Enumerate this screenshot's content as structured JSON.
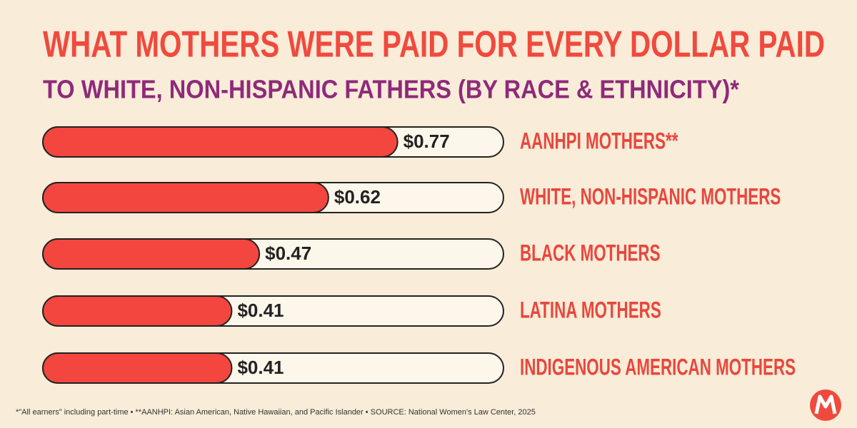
{
  "chart_data": {
    "type": "bar",
    "title": "WHAT MOTHERS WERE PAID FOR EVERY DOLLAR PAID",
    "subtitle": "TO WHITE, NON-HISPANIC FATHERS (BY RACE & ETHNICITY)*",
    "categories": [
      "AANHPI MOTHERS**",
      "WHITE, NON-HISPANIC MOTHERS",
      "BLACK MOTHERS",
      "LATINA MOTHERS",
      "INDIGENOUS AMERICAN MOTHERS"
    ],
    "values": [
      0.77,
      0.62,
      0.47,
      0.41,
      0.41
    ],
    "value_labels": [
      "$0.77",
      "$0.62",
      "$0.47",
      "$0.41",
      "$0.41"
    ],
    "color": "#f2463f",
    "xlim": [
      0,
      1
    ],
    "footnote": "*\"All earners\" including part-time  •  **AANHPI: Asian American, Native Hawaiian, and Pacific Islander  •  SOURCE: National Women's Law Center, 2025"
  }
}
